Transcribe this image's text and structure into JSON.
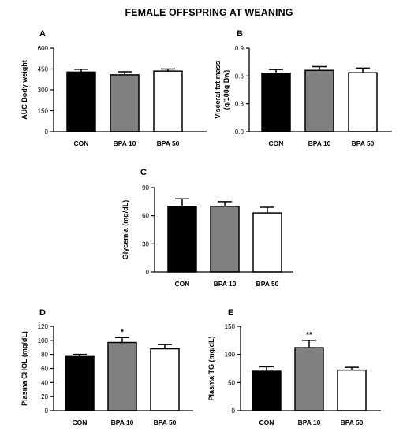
{
  "title": "FEMALE OFFSPRING AT WEANING",
  "chart_data": [
    {
      "panel": "A",
      "type": "bar",
      "categories": [
        "CON",
        "BPA 10",
        "BPA 50"
      ],
      "values": [
        428,
        408,
        435
      ],
      "errors": [
        20,
        22,
        15
      ],
      "significance": [
        "",
        "",
        ""
      ],
      "ylabel": "AUC Body weight",
      "ylim": [
        0,
        600
      ],
      "yticks": [
        0,
        150,
        300,
        450,
        600
      ],
      "fills": [
        "#000000",
        "#808080",
        "#ffffff"
      ]
    },
    {
      "panel": "B",
      "type": "bar",
      "categories": [
        "CON",
        "BPA 10",
        "BPA 50"
      ],
      "values": [
        0.63,
        0.66,
        0.635
      ],
      "errors": [
        0.04,
        0.04,
        0.05
      ],
      "significance": [
        "",
        "",
        ""
      ],
      "ylabel": [
        "Visceral fat mass",
        "(g/100g Bw)"
      ],
      "ylim": [
        0,
        0.9
      ],
      "yticks": [
        "0.0",
        "0.3",
        "0.6",
        "0.9"
      ],
      "fills": [
        "#000000",
        "#808080",
        "#ffffff"
      ]
    },
    {
      "panel": "C",
      "type": "bar",
      "categories": [
        "CON",
        "BPA 10",
        "BPA 50"
      ],
      "values": [
        70,
        70,
        63
      ],
      "errors": [
        8,
        5,
        6
      ],
      "significance": [
        "",
        "",
        ""
      ],
      "ylabel": "Glycemia (mg/dL)",
      "ylim": [
        0,
        90
      ],
      "yticks": [
        0,
        30,
        60,
        90
      ],
      "fills": [
        "#000000",
        "#808080",
        "#ffffff"
      ]
    },
    {
      "panel": "D",
      "type": "bar",
      "categories": [
        "CON",
        "BPA 10",
        "BPA 50"
      ],
      "values": [
        77,
        97,
        88
      ],
      "errors": [
        3,
        7,
        6
      ],
      "significance": [
        "",
        "*",
        ""
      ],
      "ylabel": "Plasma CHOL (mg/dL)",
      "ylim": [
        0,
        120
      ],
      "yticks": [
        0,
        20,
        40,
        60,
        80,
        100,
        120
      ],
      "fills": [
        "#000000",
        "#808080",
        "#ffffff"
      ]
    },
    {
      "panel": "E",
      "type": "bar",
      "categories": [
        "CON",
        "BPA 10",
        "BPA 50"
      ],
      "values": [
        70,
        112,
        72
      ],
      "errors": [
        8,
        13,
        5
      ],
      "significance": [
        "",
        "**",
        ""
      ],
      "ylabel": "Plasma TG (mg/dL)",
      "ylim": [
        0,
        150
      ],
      "yticks": [
        0,
        50,
        100,
        150
      ],
      "fills": [
        "#000000",
        "#808080",
        "#ffffff"
      ]
    }
  ]
}
